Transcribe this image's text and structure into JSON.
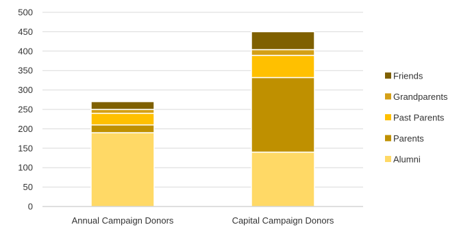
{
  "chart_data": {
    "type": "bar",
    "stacked": true,
    "title": "",
    "xlabel": "",
    "ylabel": "",
    "ylim": [
      0,
      500
    ],
    "yticks": [
      0,
      50,
      100,
      150,
      200,
      250,
      300,
      350,
      400,
      450,
      500
    ],
    "grid": true,
    "legend_position": "right",
    "categories": [
      "Annual Campaign Donors",
      "Capital Campaign Donors"
    ],
    "series": [
      {
        "name": "Alumni",
        "color": "#FFD966",
        "values": [
          190,
          140
        ]
      },
      {
        "name": "Parents",
        "color": "#BF9000",
        "values": [
          20,
          192
        ]
      },
      {
        "name": "Past Parents",
        "color": "#FFC000",
        "values": [
          30,
          57
        ]
      },
      {
        "name": "Grandparents",
        "color": "#D4A017",
        "values": [
          10,
          15
        ]
      },
      {
        "name": "Friends",
        "color": "#7F6000",
        "values": [
          20,
          46
        ]
      }
    ]
  }
}
